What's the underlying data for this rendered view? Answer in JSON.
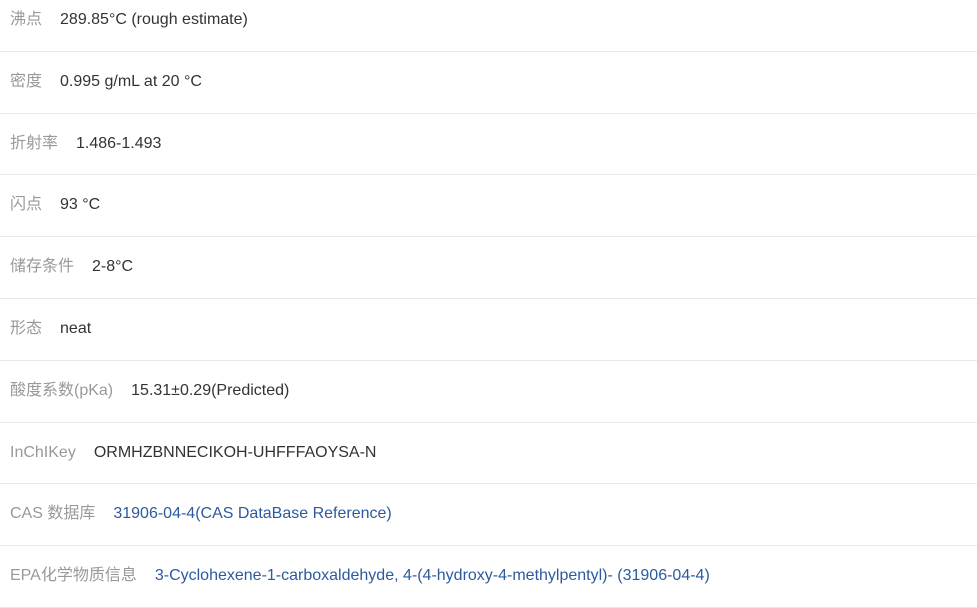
{
  "colors": {
    "label": "#999999",
    "value": "#333333",
    "link": "#2c5aa0",
    "border": "#e8e8e8",
    "background": "#ffffff"
  },
  "typography": {
    "font_family": "Arial, Microsoft YaHei, sans-serif",
    "font_size": 16
  },
  "properties": [
    {
      "label": "沸点",
      "value": "289.85°C (rough estimate)",
      "is_link": false
    },
    {
      "label": "密度",
      "value": "0.995 g/mL at 20 °C",
      "is_link": false
    },
    {
      "label": "折射率",
      "value": "1.486-1.493",
      "is_link": false
    },
    {
      "label": "闪点",
      "value": "93 °C",
      "is_link": false
    },
    {
      "label": "储存条件",
      "value": "2-8°C",
      "is_link": false
    },
    {
      "label": "形态",
      "value": "neat",
      "is_link": false
    },
    {
      "label": "酸度系数(pKa)",
      "value": "15.31±0.29(Predicted)",
      "is_link": false
    },
    {
      "label": "InChIKey",
      "value": "ORMHZBNNECIKOH-UHFFFAOYSA-N",
      "is_link": false
    },
    {
      "label": "CAS 数据库",
      "value": "31906-04-4(CAS DataBase Reference)",
      "is_link": true
    },
    {
      "label": "EPA化学物质信息",
      "value": "3-Cyclohexene-1-carboxaldehyde, 4-(4-hydroxy-4-methylpentyl)- (31906-04-4)",
      "is_link": true
    }
  ]
}
